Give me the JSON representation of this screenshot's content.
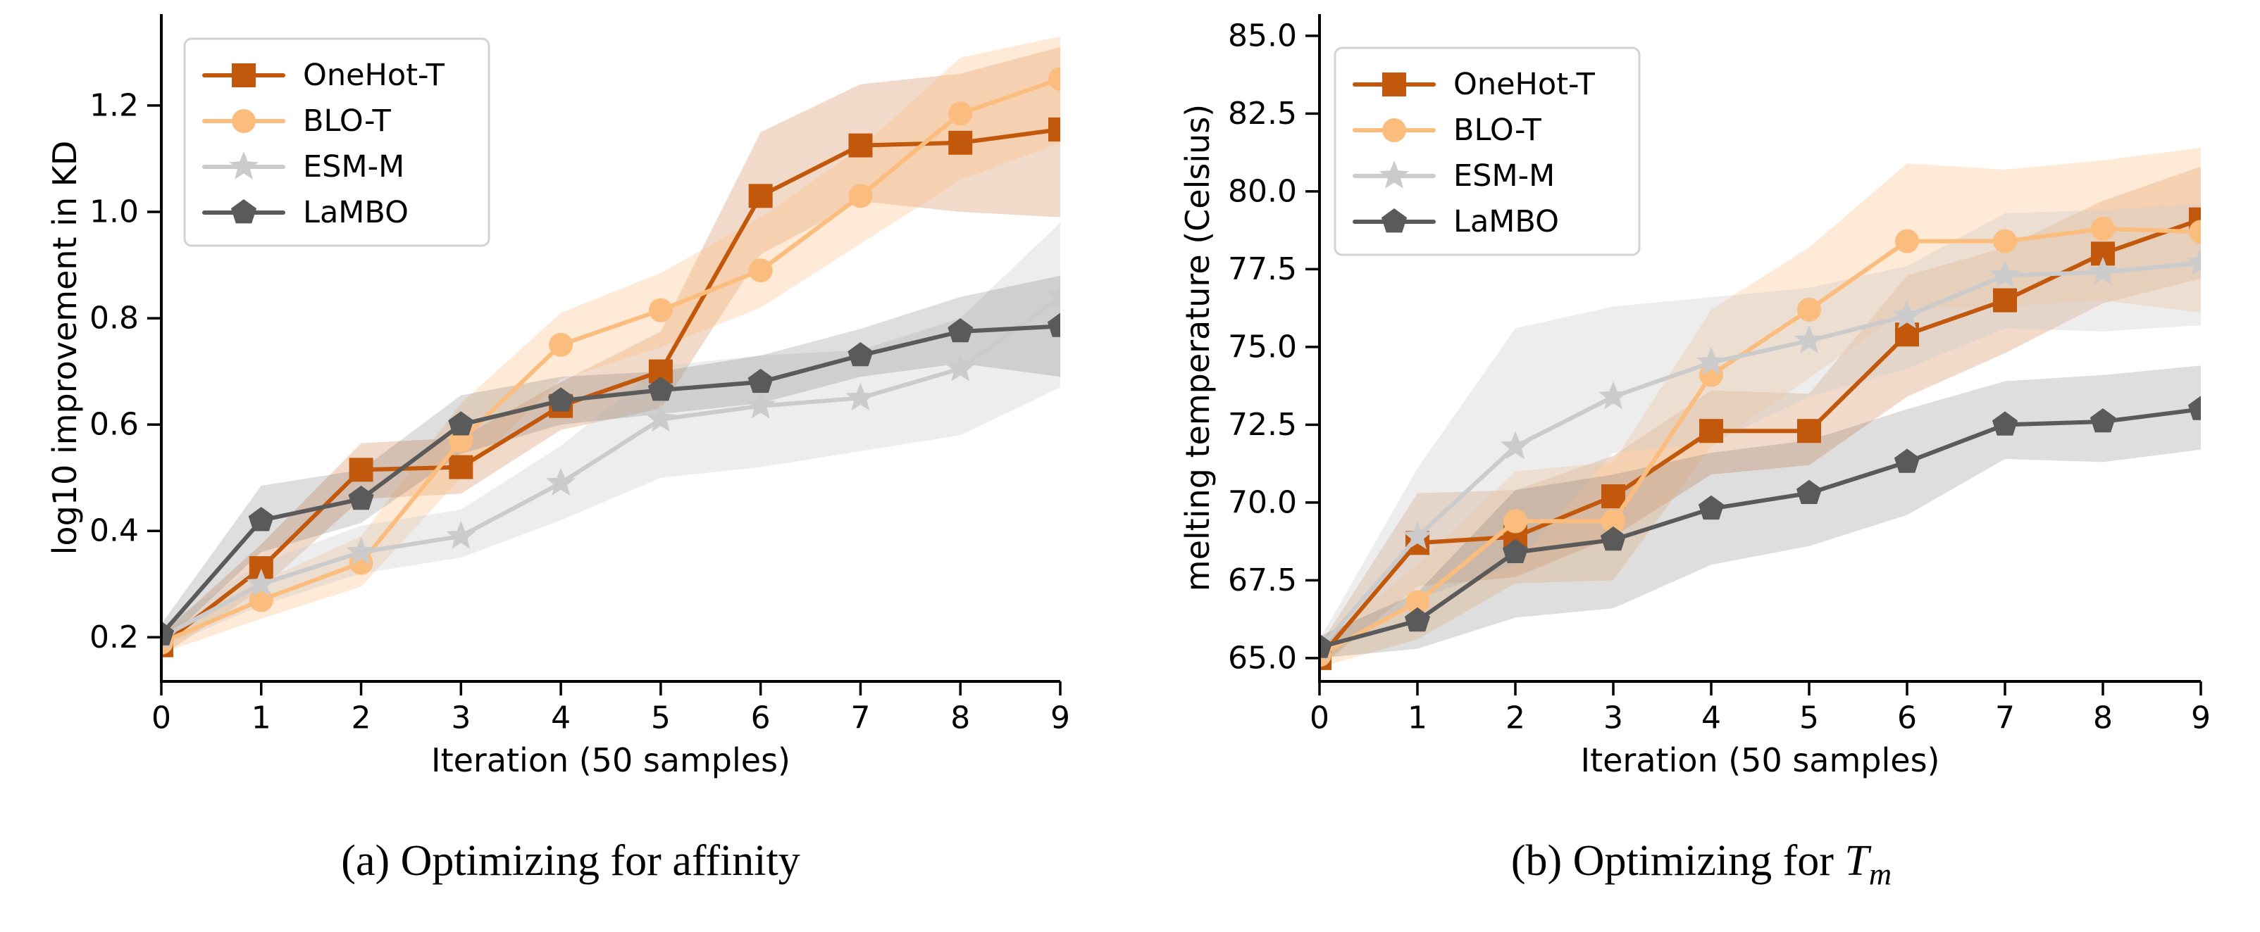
{
  "figure": {
    "background": "#ffffff",
    "text_color": "#000000",
    "spine_color": "#000000",
    "legend_border_color": "#d3d3d3"
  },
  "captions": {
    "a": "(a) Optimizing for affinity",
    "b_prefix": "(b) Optimizing for ",
    "b_math_base": "T",
    "b_math_sub": "m"
  },
  "legend": {
    "items": [
      {
        "label": "OneHot-T",
        "marker": "square-icon",
        "color": "#c2580c"
      },
      {
        "label": "BLO-T",
        "marker": "circle-icon",
        "color": "#fbbd7e"
      },
      {
        "label": "ESM-M",
        "marker": "star-icon",
        "color": "#cbcbcb"
      },
      {
        "label": "LaMBO",
        "marker": "pentagon-icon",
        "color": "#5a5a5a"
      }
    ]
  },
  "chart_data": [
    {
      "id": "a",
      "type": "line",
      "title": "",
      "caption": "(a) Optimizing for affinity",
      "xlabel": "Iteration (50 samples)",
      "ylabel": "log10 improvement in KD",
      "x": [
        0,
        1,
        2,
        3,
        4,
        5,
        6,
        7,
        8,
        9
      ],
      "xticks": [
        0,
        1,
        2,
        3,
        4,
        5,
        6,
        7,
        8,
        9
      ],
      "xtick_labels": [
        "0",
        "1",
        "2",
        "3",
        "4",
        "5",
        "6",
        "7",
        "8",
        "9"
      ],
      "yticks": [
        0.2,
        0.4,
        0.6,
        0.8,
        1.0,
        1.2
      ],
      "ytick_labels": [
        "0.2",
        "0.4",
        "0.6",
        "0.8",
        "1.0",
        "1.2"
      ],
      "xlim": [
        0,
        9
      ],
      "ylim": [
        0.117,
        1.372
      ],
      "grid": false,
      "legend_position": "upper left",
      "series": [
        {
          "name": "OneHot-T",
          "marker": "square",
          "color": "#c2580c",
          "band_opacity": 0.22,
          "values": [
            0.185,
            0.33,
            0.515,
            0.52,
            0.635,
            0.7,
            1.03,
            1.125,
            1.13,
            1.155
          ],
          "band_low": [
            0.165,
            0.29,
            0.46,
            0.47,
            0.59,
            0.63,
            0.92,
            1.02,
            1.0,
            0.99
          ],
          "band_high": [
            0.205,
            0.375,
            0.565,
            0.575,
            0.68,
            0.775,
            1.15,
            1.24,
            1.26,
            1.31
          ]
        },
        {
          "name": "BLO-T",
          "marker": "circle",
          "color": "#fbbd7e",
          "band_opacity": 0.32,
          "values": [
            0.19,
            0.27,
            0.34,
            0.57,
            0.75,
            0.815,
            0.89,
            1.03,
            1.185,
            1.25
          ],
          "band_low": [
            0.17,
            0.235,
            0.295,
            0.5,
            0.685,
            0.745,
            0.82,
            0.94,
            1.06,
            1.13
          ],
          "band_high": [
            0.21,
            0.305,
            0.39,
            0.64,
            0.81,
            0.885,
            0.99,
            1.12,
            1.29,
            1.33
          ]
        },
        {
          "name": "ESM-M",
          "marker": "star",
          "color": "#cbcbcb",
          "band_opacity": 0.35,
          "values": [
            0.2,
            0.3,
            0.36,
            0.39,
            0.49,
            0.61,
            0.635,
            0.65,
            0.705,
            0.84
          ],
          "band_low": [
            0.18,
            0.26,
            0.32,
            0.35,
            0.42,
            0.5,
            0.52,
            0.55,
            0.58,
            0.67
          ],
          "band_high": [
            0.22,
            0.34,
            0.41,
            0.44,
            0.56,
            0.71,
            0.73,
            0.74,
            0.8,
            0.98
          ]
        },
        {
          "name": "LaMBO",
          "marker": "pentagon",
          "color": "#5a5a5a",
          "band_opacity": 0.2,
          "values": [
            0.205,
            0.42,
            0.46,
            0.6,
            0.645,
            0.665,
            0.68,
            0.73,
            0.775,
            0.785
          ],
          "band_low": [
            0.185,
            0.36,
            0.415,
            0.545,
            0.6,
            0.62,
            0.64,
            0.69,
            0.715,
            0.69
          ],
          "band_high": [
            0.225,
            0.485,
            0.515,
            0.655,
            0.69,
            0.7,
            0.73,
            0.78,
            0.84,
            0.88
          ]
        }
      ]
    },
    {
      "id": "b",
      "type": "line",
      "title": "",
      "caption": "(b) Optimizing for T_m",
      "xlabel": "Iteration (50 samples)",
      "ylabel": "melting temperature (Celsius)",
      "x": [
        0,
        1,
        2,
        3,
        4,
        5,
        6,
        7,
        8,
        9
      ],
      "xticks": [
        0,
        1,
        2,
        3,
        4,
        5,
        6,
        7,
        8,
        9
      ],
      "xtick_labels": [
        "0",
        "1",
        "2",
        "3",
        "4",
        "5",
        "6",
        "7",
        "8",
        "9"
      ],
      "yticks": [
        65.0,
        67.5,
        70.0,
        72.5,
        75.0,
        77.5,
        80.0,
        82.5,
        85.0
      ],
      "ytick_labels": [
        "65.0",
        "67.5",
        "70.0",
        "72.5",
        "75.0",
        "77.5",
        "80.0",
        "82.5",
        "85.0"
      ],
      "xlim": [
        0,
        9
      ],
      "ylim": [
        64.25,
        85.7
      ],
      "grid": false,
      "legend_position": "upper left",
      "series": [
        {
          "name": "OneHot-T",
          "marker": "square",
          "color": "#c2580c",
          "band_opacity": 0.22,
          "values": [
            65.0,
            68.7,
            68.9,
            70.2,
            72.3,
            72.3,
            75.4,
            76.5,
            78.0,
            79.1
          ],
          "band_low": [
            64.7,
            67.3,
            67.6,
            68.9,
            70.9,
            71.2,
            73.4,
            74.8,
            76.4,
            77.2
          ],
          "band_high": [
            65.4,
            70.3,
            70.4,
            71.5,
            73.6,
            73.5,
            77.3,
            78.2,
            79.7,
            80.8
          ]
        },
        {
          "name": "BLO-T",
          "marker": "circle",
          "color": "#fbbd7e",
          "band_opacity": 0.32,
          "values": [
            65.1,
            66.8,
            69.4,
            69.4,
            74.1,
            76.2,
            78.4,
            78.4,
            78.8,
            78.7
          ],
          "band_low": [
            64.7,
            65.6,
            67.4,
            67.5,
            71.8,
            74.0,
            76.2,
            76.3,
            76.5,
            76.1
          ],
          "band_high": [
            65.4,
            68.0,
            71.0,
            71.3,
            76.2,
            78.2,
            80.9,
            80.7,
            81.0,
            81.4
          ]
        },
        {
          "name": "ESM-M",
          "marker": "star",
          "color": "#cbcbcb",
          "band_opacity": 0.35,
          "values": [
            65.3,
            68.9,
            71.8,
            73.4,
            74.5,
            75.2,
            76.0,
            77.3,
            77.4,
            77.7
          ],
          "band_low": [
            65.0,
            66.9,
            68.0,
            71.6,
            71.9,
            73.4,
            74.3,
            75.6,
            75.5,
            75.7
          ],
          "band_high": [
            65.6,
            71.1,
            75.6,
            76.3,
            76.6,
            76.9,
            77.6,
            79.3,
            79.4,
            79.6
          ]
        },
        {
          "name": "LaMBO",
          "marker": "pentagon",
          "color": "#5a5a5a",
          "band_opacity": 0.2,
          "values": [
            65.35,
            66.2,
            68.4,
            68.8,
            69.8,
            70.3,
            71.3,
            72.5,
            72.6,
            73.0
          ],
          "band_low": [
            65.0,
            65.3,
            66.3,
            66.6,
            68.0,
            68.6,
            69.6,
            71.4,
            71.3,
            71.7
          ],
          "band_high": [
            65.7,
            67.1,
            70.4,
            70.9,
            71.6,
            72.0,
            73.0,
            73.9,
            74.1,
            74.4
          ]
        }
      ]
    }
  ]
}
